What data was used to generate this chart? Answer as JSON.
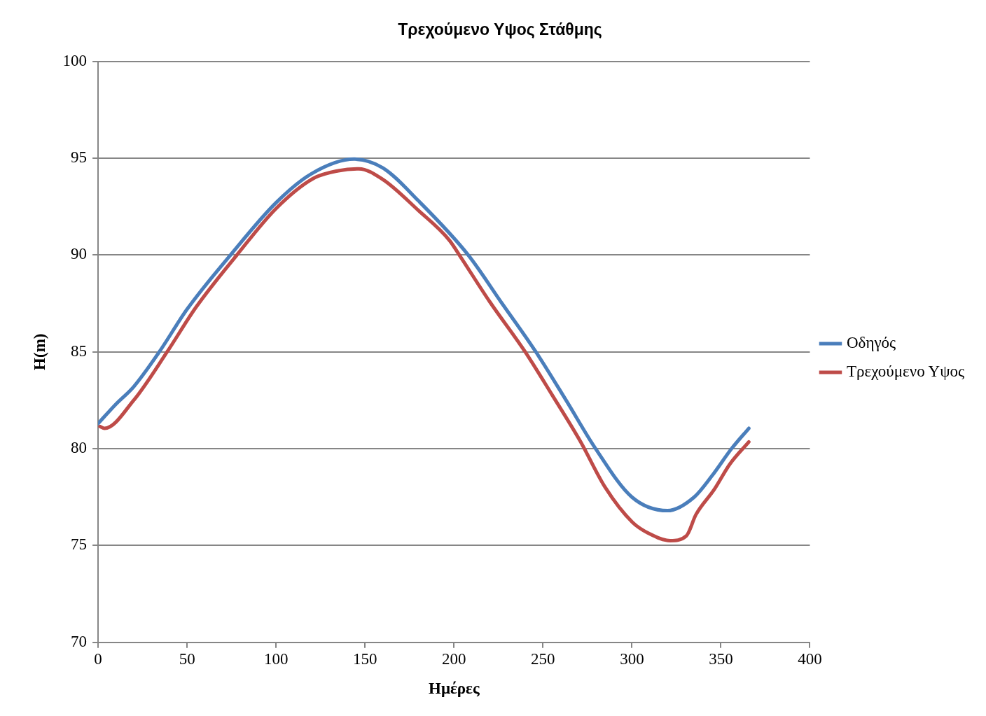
{
  "chart_data": {
    "type": "line",
    "title": "Τρεχούμενο Υψος Στάθμης",
    "xlabel": "Ημέρες",
    "ylabel": "H(m)",
    "xlim": [
      0,
      400
    ],
    "xticks": [
      0,
      50,
      100,
      150,
      200,
      250,
      300,
      350,
      400
    ],
    "ylim": [
      70,
      100
    ],
    "yticks": [
      70,
      75,
      80,
      85,
      90,
      95,
      100
    ],
    "grid": "y",
    "legend": "right",
    "marker": "none",
    "line_style": "solid",
    "series": [
      {
        "name": "Οδηγός",
        "color": "#4a7ebb",
        "x": [
          0,
          10,
          20,
          34.4,
          50,
          74.4,
          100,
          120,
          144,
          160,
          180,
          208,
          227,
          246,
          263,
          279.6,
          300,
          320,
          335,
          345,
          356,
          365.7
        ],
        "values": [
          81.3,
          82.3,
          83.2,
          85,
          87.2,
          90,
          92.7,
          94.2,
          94.95,
          94.5,
          92.8,
          90,
          87.5,
          85,
          82.5,
          80,
          77.5,
          76.8,
          77.5,
          78.6,
          80,
          81.05
        ]
      },
      {
        "name": "Τρεχούμενο Υψος",
        "color": "#be4b48",
        "x": [
          1,
          3.6,
          20,
          38.8,
          55,
          78,
          100,
          120.9,
          135,
          146.6,
          160,
          180,
          197.5,
          203,
          220,
          240,
          255,
          270.9,
          285,
          300.3,
          310,
          321.5,
          330.6,
          336,
          346.3,
          355,
          365.7
        ],
        "values": [
          81.15,
          81.05,
          82.5,
          85,
          87.3,
          90,
          92.4,
          93.95,
          94.35,
          94.45,
          93.9,
          92.3,
          90.75,
          90,
          87.6,
          85,
          82.8,
          80.4,
          78,
          76.2,
          75.6,
          75.25,
          75.5,
          76.6,
          77.9,
          79.2,
          80.35
        ]
      }
    ]
  }
}
